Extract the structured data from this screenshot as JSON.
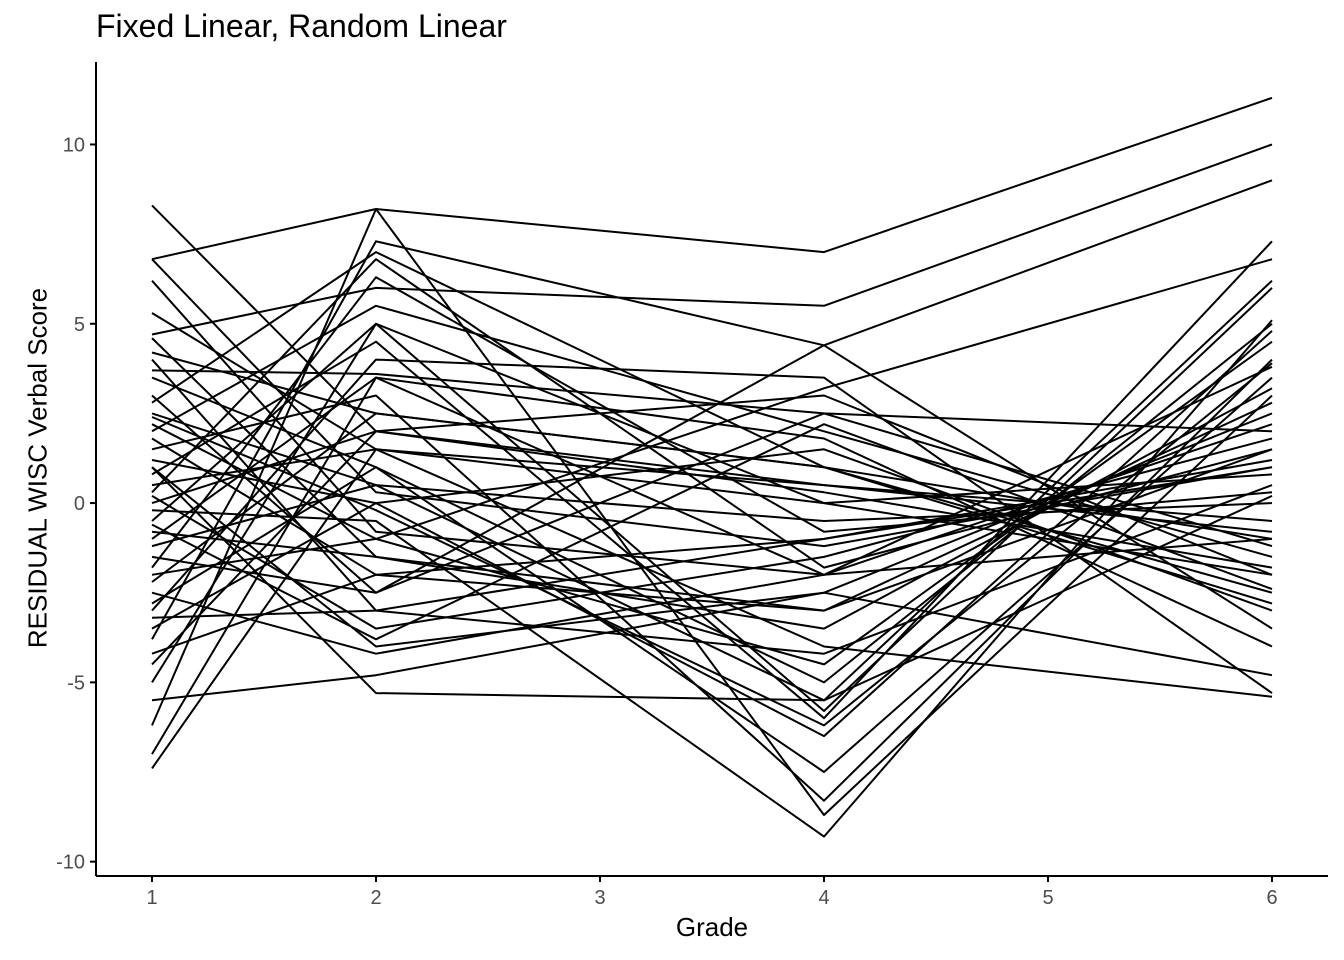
{
  "chart_data": {
    "type": "line",
    "title": "Fixed Linear, Random Linear",
    "xlabel": "Grade",
    "ylabel": "RESIDUAL WISC Verbal Score",
    "x": [
      1,
      2,
      4,
      6
    ],
    "x_ticks": [
      "1",
      "2",
      "3",
      "4",
      "5",
      "6"
    ],
    "y_ticks": [
      "-10",
      "-5",
      "0",
      "5",
      "10"
    ],
    "xlim": [
      0.75,
      6.25
    ],
    "ylim": [
      -10.4,
      12.3
    ],
    "grid": false,
    "legend": "none",
    "line_color": "#000000",
    "series": [
      {
        "values": [
          8.3,
          2.0,
          0.5,
          -0.5
        ]
      },
      {
        "values": [
          6.8,
          0.3,
          -1.2,
          1.0
        ]
      },
      {
        "values": [
          6.8,
          8.2,
          7.0,
          11.3
        ]
      },
      {
        "values": [
          6.2,
          -0.8,
          -2.0,
          3.8
        ]
      },
      {
        "values": [
          5.3,
          1.5,
          0.0,
          -2.0
        ]
      },
      {
        "values": [
          4.7,
          6.0,
          5.5,
          10.0
        ]
      },
      {
        "values": [
          4.6,
          -1.5,
          -3.0,
          1.5
        ]
      },
      {
        "values": [
          4.2,
          2.5,
          1.0,
          -1.0
        ]
      },
      {
        "values": [
          4.0,
          -3.0,
          -4.2,
          0.5
        ]
      },
      {
        "values": [
          3.7,
          3.6,
          2.5,
          2.0
        ]
      },
      {
        "values": [
          3.5,
          1.0,
          -5.0,
          5.0
        ]
      },
      {
        "values": [
          3.0,
          -2.5,
          4.4,
          9.0
        ]
      },
      {
        "values": [
          2.8,
          7.0,
          1.0,
          -2.5
        ]
      },
      {
        "values": [
          2.5,
          0.5,
          -0.5,
          0.0
        ]
      },
      {
        "values": [
          2.2,
          -1.0,
          3.2,
          6.8
        ]
      },
      {
        "values": [
          2.0,
          5.5,
          2.0,
          -1.5
        ]
      },
      {
        "values": [
          1.8,
          -2.0,
          -1.0,
          1.2
        ]
      },
      {
        "values": [
          1.5,
          3.0,
          -8.3,
          4.0
        ]
      },
      {
        "values": [
          1.2,
          0.0,
          1.5,
          -3.0
        ]
      },
      {
        "values": [
          1.0,
          -4.0,
          -2.5,
          2.5
        ]
      },
      {
        "values": [
          0.8,
          4.5,
          -6.0,
          7.3
        ]
      },
      {
        "values": [
          0.5,
          1.5,
          0.5,
          -0.8
        ]
      },
      {
        "values": [
          0.2,
          -3.5,
          -1.5,
          1.8
        ]
      },
      {
        "values": [
          0.0,
          2.0,
          3.0,
          -2.0
        ]
      },
      {
        "values": [
          -0.2,
          -0.5,
          -9.3,
          5.1
        ]
      },
      {
        "values": [
          -0.5,
          5.0,
          0.0,
          0.8
        ]
      },
      {
        "values": [
          -0.8,
          -1.5,
          -3.5,
          3.2
        ]
      },
      {
        "values": [
          -1.0,
          3.5,
          1.8,
          -4.0
        ]
      },
      {
        "values": [
          -1.2,
          0.5,
          -5.5,
          6.2
        ]
      },
      {
        "values": [
          -1.5,
          -2.5,
          2.5,
          -1.2
        ]
      },
      {
        "values": [
          -1.8,
          6.3,
          -0.8,
          0.3
        ]
      },
      {
        "values": [
          -2.0,
          -1.0,
          -4.5,
          4.5
        ]
      },
      {
        "values": [
          -2.2,
          2.5,
          1.0,
          -2.8
        ]
      },
      {
        "values": [
          -2.5,
          -4.2,
          -2.0,
          2.2
        ]
      },
      {
        "values": [
          -2.8,
          1.0,
          -7.5,
          3.5
        ]
      },
      {
        "values": [
          -3.0,
          4.0,
          3.5,
          -5.3
        ]
      },
      {
        "values": [
          -3.2,
          -3.0,
          -1.0,
          1.0
        ]
      },
      {
        "values": [
          -3.5,
          0.0,
          -6.5,
          4.8
        ]
      },
      {
        "values": [
          -3.8,
          7.3,
          4.4,
          -3.5
        ]
      },
      {
        "values": [
          -4.2,
          -2.0,
          -3.0,
          2.8
        ]
      },
      {
        "values": [
          -4.5,
          2.0,
          0.3,
          -1.8
        ]
      },
      {
        "values": [
          -5.0,
          5.0,
          -5.8,
          6.0
        ]
      },
      {
        "values": [
          -5.5,
          -4.8,
          -2.5,
          -4.8
        ]
      },
      {
        "values": [
          -6.2,
          8.2,
          -8.7,
          3.0
        ]
      },
      {
        "values": [
          -7.0,
          3.5,
          -2.0,
          -1.0
        ]
      },
      {
        "values": [
          -7.4,
          1.5,
          -4.0,
          -5.4
        ]
      },
      {
        "values": [
          1.0,
          -5.3,
          -5.5,
          0.2
        ]
      },
      {
        "values": [
          0.3,
          6.8,
          -1.8,
          1.5
        ]
      },
      {
        "values": [
          -0.6,
          -3.8,
          2.2,
          -2.4
        ]
      },
      {
        "values": [
          2.4,
          -0.2,
          -6.2,
          3.9
        ]
      }
    ]
  }
}
